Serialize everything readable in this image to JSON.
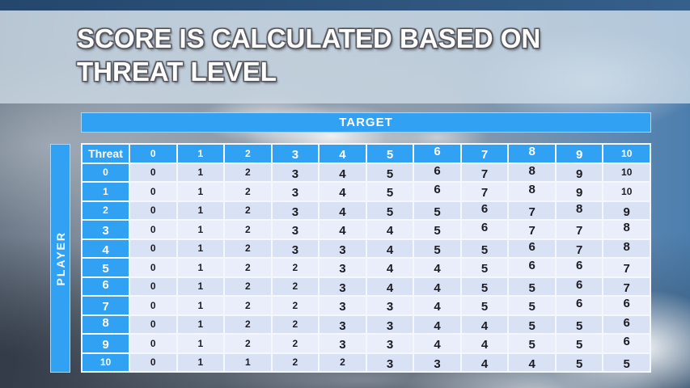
{
  "title": {
    "line1": "SCORE IS CALCULATED BASED ON",
    "line2": "THREAT LEVEL"
  },
  "matrix": {
    "target_label": "TARGET",
    "player_label": "PLAYER",
    "corner_label": "Threat",
    "column_headers": [
      "0",
      "1",
      "2",
      "3",
      "4",
      "5",
      "6",
      "7",
      "8",
      "9",
      "10"
    ],
    "rows": [
      {
        "threat": "0",
        "values": [
          "0",
          "1",
          "2",
          "3",
          "4",
          "5",
          "6",
          "7",
          "8",
          "9",
          "10"
        ]
      },
      {
        "threat": "1",
        "values": [
          "0",
          "1",
          "2",
          "3",
          "4",
          "5",
          "6",
          "7",
          "8",
          "9",
          "10"
        ]
      },
      {
        "threat": "2",
        "values": [
          "0",
          "1",
          "2",
          "3",
          "4",
          "5",
          "5",
          "6",
          "7",
          "8",
          "9"
        ]
      },
      {
        "threat": "3",
        "values": [
          "0",
          "1",
          "2",
          "3",
          "4",
          "4",
          "5",
          "6",
          "7",
          "7",
          "8"
        ]
      },
      {
        "threat": "4",
        "values": [
          "0",
          "1",
          "2",
          "3",
          "3",
          "4",
          "5",
          "5",
          "6",
          "7",
          "8"
        ]
      },
      {
        "threat": "5",
        "values": [
          "0",
          "1",
          "2",
          "2",
          "3",
          "4",
          "4",
          "5",
          "6",
          "6",
          "7"
        ]
      },
      {
        "threat": "6",
        "values": [
          "0",
          "1",
          "2",
          "2",
          "3",
          "4",
          "4",
          "5",
          "5",
          "6",
          "7"
        ]
      },
      {
        "threat": "7",
        "values": [
          "0",
          "1",
          "2",
          "2",
          "3",
          "3",
          "4",
          "5",
          "5",
          "6",
          "6"
        ]
      },
      {
        "threat": "8",
        "values": [
          "0",
          "1",
          "2",
          "2",
          "3",
          "3",
          "4",
          "4",
          "5",
          "5",
          "6"
        ]
      },
      {
        "threat": "9",
        "values": [
          "0",
          "1",
          "2",
          "2",
          "3",
          "3",
          "4",
          "4",
          "5",
          "5",
          "6"
        ]
      },
      {
        "threat": "10",
        "values": [
          "0",
          "1",
          "1",
          "2",
          "2",
          "3",
          "3",
          "4",
          "4",
          "5",
          "5"
        ]
      }
    ]
  },
  "colors": {
    "header_blue": "#31a1f4",
    "row_even": "#d9e1f5",
    "row_odd": "#eaeefb",
    "cell_text": "#1c1c24",
    "grid_line": "#f4f8fc"
  }
}
